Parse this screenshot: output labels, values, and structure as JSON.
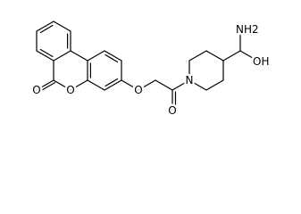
{
  "atoms": [
    {
      "label": "O"
    },
    {
      "label": "O"
    },
    {
      "label": "O"
    },
    {
      "label": "O"
    },
    {
      "label": "N"
    },
    {
      "label": "NH2"
    },
    {
      "label": "OH"
    }
  ]
}
